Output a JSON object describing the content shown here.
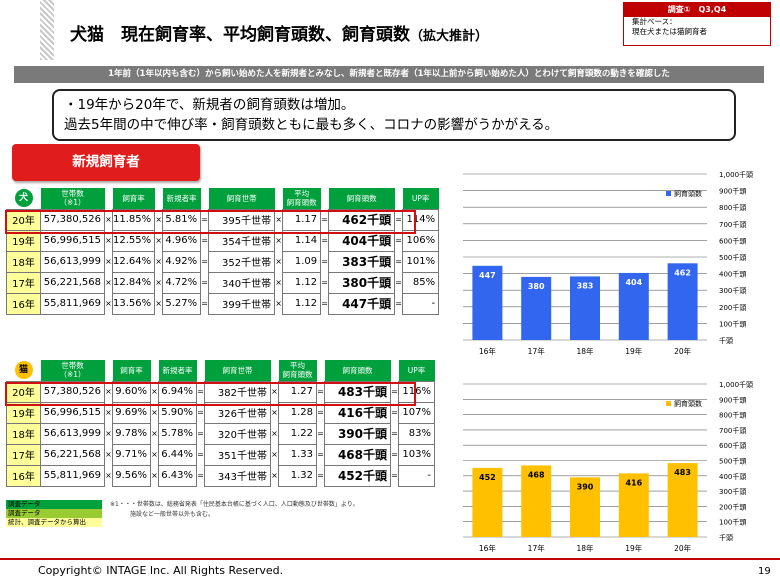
{
  "header": {
    "title": "犬猫　現在飼育率、平均飼育頭数、飼育頭数",
    "title_suffix": "（拡大推計）",
    "survey_label": "調査①　Q3,Q4",
    "base_label": "集計ベース：",
    "base_value": "現在犬または猫飼育者"
  },
  "subtitle": "1年前（1年以内も含む）から飼い始めた人を新規者とみなし、新規者と既存者（1年以上前から飼い始めた人）とわけて飼育頭数の動きを確認した",
  "callout": {
    "line1": "・19年から20年で、新規者の飼育頭数は増加。",
    "line2": "過去5年間の中で伸び率・飼育頭数ともに最も多く、コロナの影響がうかがえる。"
  },
  "badge": "新規飼育者",
  "columns": {
    "households": "世帯数",
    "households_note": "（※1）",
    "rate": "飼育率",
    "new_rate": "新規者率",
    "owning_households": "飼育世帯",
    "avg_count_1": "平均",
    "avg_count_2": "飼育頭数",
    "total": "飼育頭数",
    "up_rate": "UP率"
  },
  "operators": {
    "times": "×",
    "equals": "="
  },
  "dog": {
    "label": "犬",
    "rows": [
      {
        "year": "20年",
        "households": "57,380,526",
        "rate": "11.85%",
        "new_rate": "5.81%",
        "owning": "395千世帯",
        "avg": "1.17",
        "total": "462千頭",
        "up": "114%"
      },
      {
        "year": "19年",
        "households": "56,996,515",
        "rate": "12.55%",
        "new_rate": "4.96%",
        "owning": "354千世帯",
        "avg": "1.14",
        "total": "404千頭",
        "up": "106%"
      },
      {
        "year": "18年",
        "households": "56,613,999",
        "rate": "12.64%",
        "new_rate": "4.92%",
        "owning": "352千世帯",
        "avg": "1.09",
        "total": "383千頭",
        "up": "101%"
      },
      {
        "year": "17年",
        "households": "56,221,568",
        "rate": "12.84%",
        "new_rate": "4.72%",
        "owning": "340千世帯",
        "avg": "1.12",
        "total": "380千頭",
        "up": "85%"
      },
      {
        "year": "16年",
        "households": "55,811,969",
        "rate": "13.56%",
        "new_rate": "5.27%",
        "owning": "399千世帯",
        "avg": "1.12",
        "total": "447千頭",
        "up": "-"
      }
    ]
  },
  "cat": {
    "label": "猫",
    "rows": [
      {
        "year": "20年",
        "households": "57,380,526",
        "rate": "9.60%",
        "new_rate": "6.94%",
        "owning": "382千世帯",
        "avg": "1.27",
        "total": "483千頭",
        "up": "116%"
      },
      {
        "year": "19年",
        "households": "56,996,515",
        "rate": "9.69%",
        "new_rate": "5.90%",
        "owning": "326千世帯",
        "avg": "1.28",
        "total": "416千頭",
        "up": "107%"
      },
      {
        "year": "18年",
        "households": "56,613,999",
        "rate": "9.78%",
        "new_rate": "5.78%",
        "owning": "320千世帯",
        "avg": "1.22",
        "total": "390千頭",
        "up": "83%"
      },
      {
        "year": "17年",
        "households": "56,221,568",
        "rate": "9.71%",
        "new_rate": "6.44%",
        "owning": "351千世帯",
        "avg": "1.33",
        "total": "468千頭",
        "up": "103%"
      },
      {
        "year": "16年",
        "households": "55,811,969",
        "rate": "9.56%",
        "new_rate": "6.43%",
        "owning": "343千世帯",
        "avg": "1.32",
        "total": "452千頭",
        "up": "-"
      }
    ]
  },
  "legend": {
    "item1": "調査データ",
    "item2": "調査データ",
    "item3": "統計、調査データから算出",
    "colors": [
      "#00a03c",
      "#99cc33",
      "#ffff99"
    ]
  },
  "footnote": {
    "line1": "※1・・・世帯数は、総務省発表「住民基本台帳に基づく人口、人口動態及び世帯数」より。",
    "line2": "施設など一般世帯以外も含む。"
  },
  "chart_data": [
    {
      "type": "bar",
      "categories": [
        "16年",
        "17年",
        "18年",
        "19年",
        "20年"
      ],
      "series": [
        {
          "name": "飼育頭数",
          "values": [
            447,
            380,
            383,
            404,
            462
          ]
        }
      ],
      "value_labels": [
        "447",
        "380",
        "383",
        "404",
        "462"
      ],
      "ylim": [
        0,
        1000
      ],
      "yticks": [
        "千頭",
        "100千頭",
        "200千頭",
        "300千頭",
        "400千頭",
        "500千頭",
        "600千頭",
        "700千頭",
        "800千頭",
        "900千頭",
        "1,000千頭"
      ],
      "color": "#3366ee",
      "legend_position": "top-right",
      "grid": true
    },
    {
      "type": "bar",
      "categories": [
        "16年",
        "17年",
        "18年",
        "19年",
        "20年"
      ],
      "series": [
        {
          "name": "飼育頭数",
          "values": [
            452,
            468,
            390,
            416,
            483
          ]
        }
      ],
      "value_labels": [
        "452",
        "468",
        "390",
        "416",
        "483"
      ],
      "ylim": [
        0,
        1000
      ],
      "yticks": [
        "千頭",
        "100千頭",
        "200千頭",
        "300千頭",
        "400千頭",
        "500千頭",
        "600千頭",
        "700千頭",
        "800千頭",
        "900千頭",
        "1,000千頭"
      ],
      "color": "#ffc000",
      "legend_position": "top-right",
      "grid": true
    }
  ],
  "footer": {
    "copyright": "Copyright© INTAGE Inc. All Rights Reserved.",
    "page": "19"
  }
}
